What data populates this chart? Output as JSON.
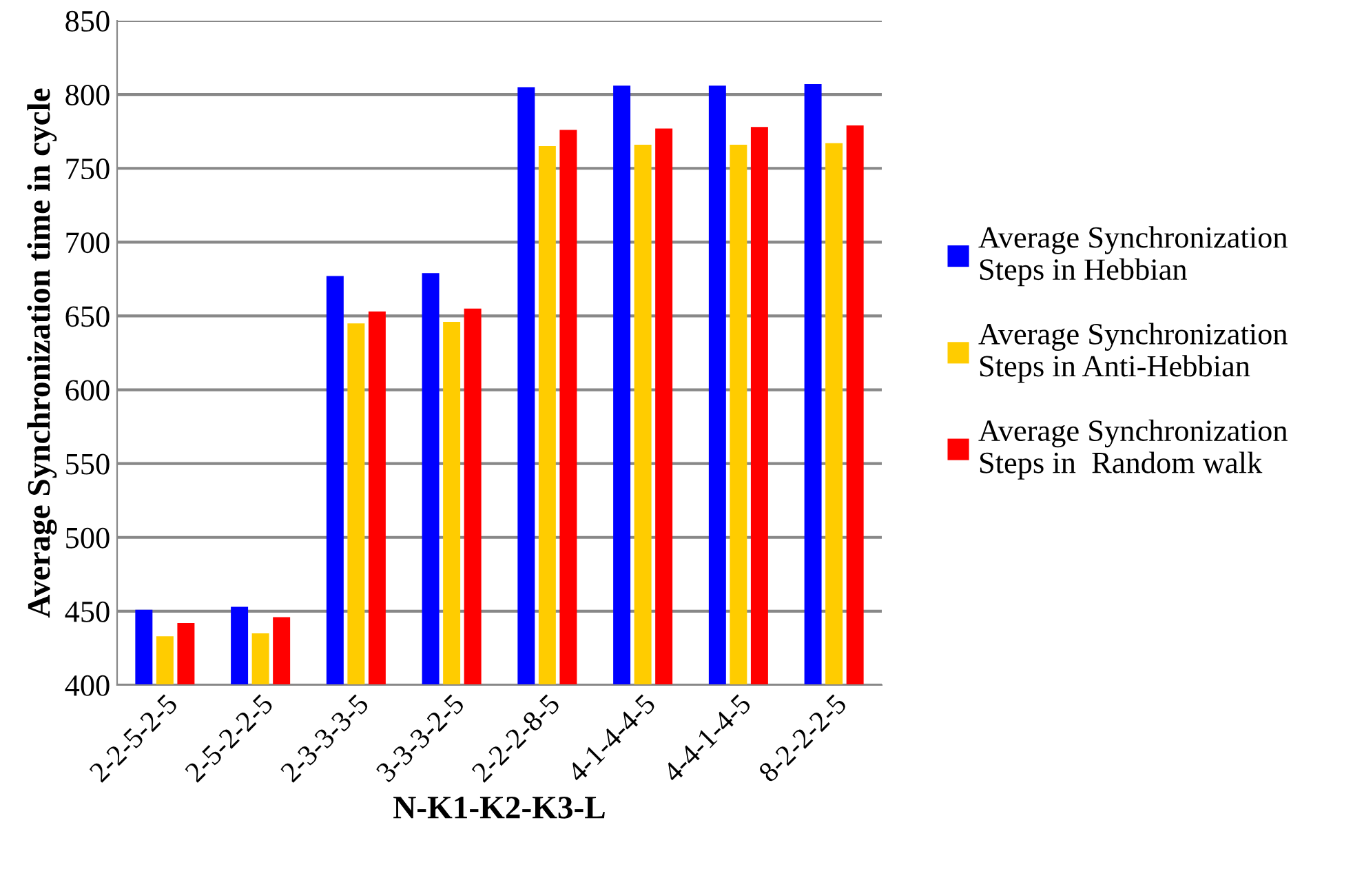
{
  "chart_data": {
    "type": "bar",
    "xlabel": "N-K1-K2-K3-L",
    "ylabel": "Average Synchronization time in cycle",
    "categories": [
      "2-2-5-2-5",
      "2-5-2-2-5",
      "2-3-3-3-5",
      "3-3-3-2-5",
      "2-2-2-8-5",
      "4-1-4-4-5",
      "4-4-1-4-5",
      "8-2-2-2-5"
    ],
    "series": [
      {
        "name": "Average Synchronization\nSteps in Hebbian",
        "color": "#0000ff",
        "values": [
          451,
          453,
          677,
          679,
          805,
          806,
          806,
          807
        ]
      },
      {
        "name": "Average Synchronization\nSteps in Anti-Hebbian",
        "color": "#ffcc00",
        "values": [
          433,
          435,
          645,
          646,
          765,
          766,
          766,
          767
        ]
      },
      {
        "name": "Average Synchronization\nSteps in  Random walk",
        "color": "#ff0000",
        "values": [
          442,
          446,
          653,
          655,
          776,
          777,
          778,
          779
        ]
      }
    ],
    "ylim": [
      400,
      850
    ],
    "yticks": [
      400,
      450,
      500,
      550,
      600,
      650,
      700,
      750,
      800,
      850
    ],
    "grid": "y",
    "legend": "right"
  }
}
